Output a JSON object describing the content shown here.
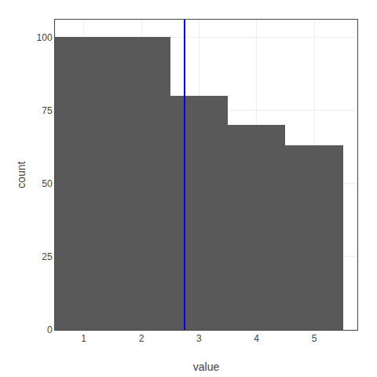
{
  "chart_data": {
    "type": "histogram",
    "x_label": "value",
    "y_label": "count",
    "bins": [
      0.5,
      2.5,
      3.5,
      4.5,
      5.5
    ],
    "values": [
      100,
      80,
      70,
      63
    ],
    "color": "#595959",
    "vlines": [
      {
        "x": 2.75,
        "color": "blue"
      }
    ],
    "xlim": [
      0.5,
      5.75
    ],
    "xticks": [
      1,
      2,
      3,
      4,
      5
    ],
    "ylim": [
      0,
      106
    ],
    "yticks": [
      0,
      25,
      50,
      75,
      100
    ],
    "grid": true
  }
}
